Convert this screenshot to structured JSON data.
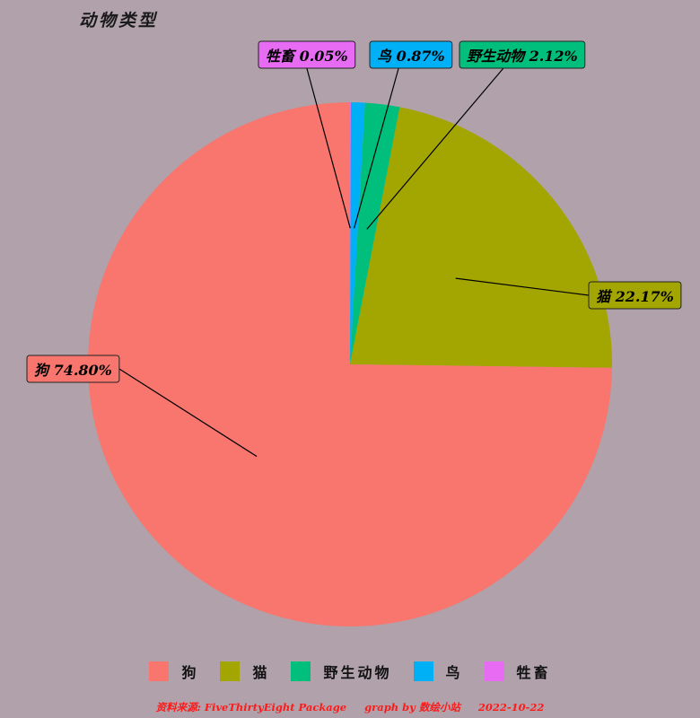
{
  "chart_data": {
    "type": "pie",
    "title": "动物类型",
    "slices": [
      {
        "label": "狗",
        "value": 74.8,
        "display": "狗 74.80%",
        "color": "#f8766d"
      },
      {
        "label": "猫",
        "value": 22.17,
        "display": "猫 22.17%",
        "color": "#a3a500"
      },
      {
        "label": "野生动物",
        "value": 2.12,
        "display": "野生动物 2.12%",
        "color": "#00bf7d"
      },
      {
        "label": "鸟",
        "value": 0.87,
        "display": "鸟 0.87%",
        "color": "#00b0f6"
      },
      {
        "label": "牲畜",
        "value": 0.05,
        "display": "牲畜 0.05%",
        "color": "#e76bf3"
      }
    ],
    "legend_position": "bottom",
    "start": "12 o'clock",
    "direction": "clockwise, largest slice last"
  },
  "caption": "资料来源: FiveThirtyEight Package     graph by 数绘小站     2022-10-22"
}
